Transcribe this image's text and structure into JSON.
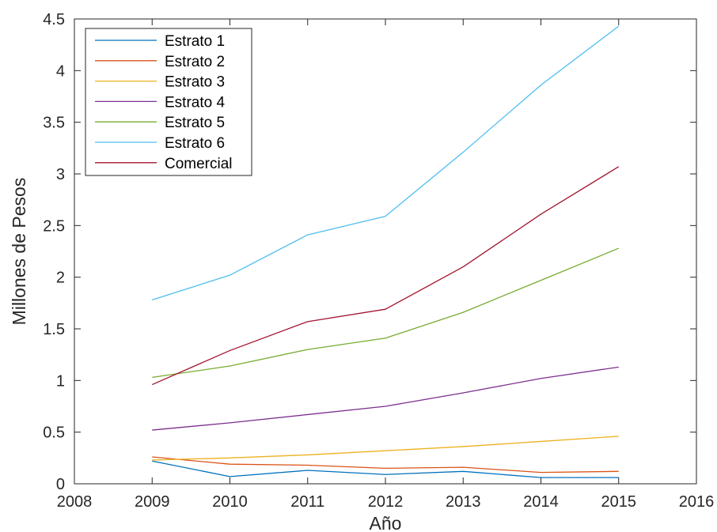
{
  "chart_data": {
    "type": "line",
    "xlabel": "Año",
    "ylabel": "Millones de Pesos",
    "xlim": [
      2008,
      2016
    ],
    "ylim": [
      0,
      4.5
    ],
    "xticks": [
      2008,
      2009,
      2010,
      2011,
      2012,
      2013,
      2014,
      2015,
      2016
    ],
    "xtick_labels": [
      "2008",
      "2009",
      "2010",
      "2011",
      "2012",
      "2013",
      "2014",
      "2015",
      "2016"
    ],
    "yticks": [
      0,
      0.5,
      1,
      1.5,
      2,
      2.5,
      3,
      3.5,
      4,
      4.5
    ],
    "ytick_labels": [
      "0",
      "0.5",
      "1",
      "1.5",
      "2",
      "2.5",
      "3",
      "3.5",
      "4",
      "4.5"
    ],
    "grid": false,
    "legend_position": "top-left",
    "x": [
      2009,
      2010,
      2011,
      2012,
      2013,
      2014,
      2015
    ],
    "series": [
      {
        "name": "Estrato 1",
        "color": "#0072BD",
        "values": [
          0.22,
          0.07,
          0.13,
          0.09,
          0.12,
          0.06,
          0.06
        ]
      },
      {
        "name": "Estrato 2",
        "color": "#D95319",
        "values": [
          0.26,
          0.19,
          0.18,
          0.15,
          0.16,
          0.11,
          0.12
        ]
      },
      {
        "name": "Estrato 3",
        "color": "#EDB120",
        "values": [
          0.23,
          0.25,
          0.28,
          0.32,
          0.36,
          0.41,
          0.46
        ]
      },
      {
        "name": "Estrato 4",
        "color": "#7E2F8E",
        "values": [
          0.52,
          0.59,
          0.67,
          0.75,
          0.88,
          1.02,
          1.13
        ]
      },
      {
        "name": "Estrato 5",
        "color": "#77AC30",
        "values": [
          1.03,
          1.14,
          1.3,
          1.41,
          1.66,
          1.97,
          2.28
        ]
      },
      {
        "name": "Estrato 6",
        "color": "#4DBEEE",
        "values": [
          1.78,
          2.02,
          2.41,
          2.59,
          3.21,
          3.86,
          4.43
        ]
      },
      {
        "name": "Comercial",
        "color": "#A2142F",
        "values": [
          0.96,
          1.29,
          1.57,
          1.69,
          2.1,
          2.61,
          3.07
        ]
      }
    ]
  }
}
